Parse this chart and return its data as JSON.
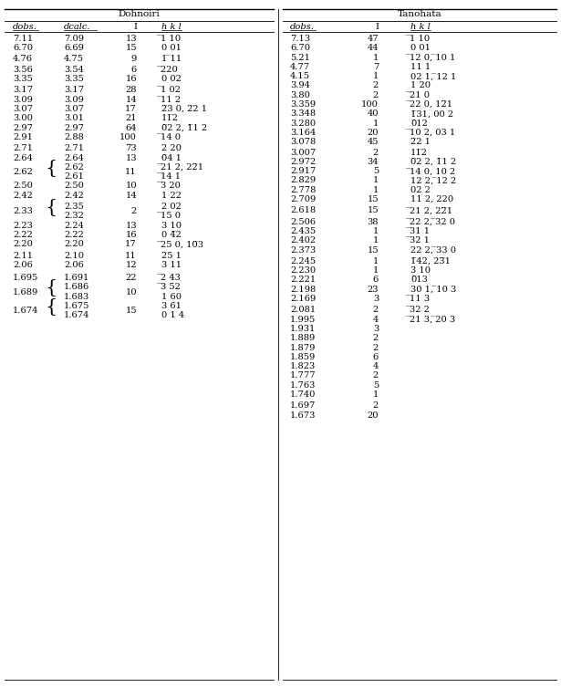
{
  "dohnoiri_header": "Dohnoiri",
  "tanohata_header": "Tanohata",
  "dohnoiri_extra_before": [
    0,
    0,
    1,
    2,
    0,
    2,
    0,
    0,
    0,
    0,
    0,
    2,
    0,
    0,
    0,
    0,
    2,
    0,
    0,
    0,
    2,
    0,
    4,
    0,
    0
  ],
  "dohnoiri_rows": [
    {
      "dobs": "7.11",
      "dcalc": [
        "7.09"
      ],
      "I": "13",
      "hkl": [
        "̅1 10"
      ],
      "grouped": false
    },
    {
      "dobs": "6.70",
      "dcalc": [
        "6.69"
      ],
      "I": "15",
      "hkl": [
        "0 01"
      ],
      "grouped": false
    },
    {
      "dobs": "4.76",
      "dcalc": [
        "4.75"
      ],
      "I": "9",
      "hkl": [
        "1 ̅11"
      ],
      "grouped": false
    },
    {
      "dobs": "3.56",
      "dcalc": [
        "3.54"
      ],
      "I": "6",
      "hkl": [
        "̅220"
      ],
      "grouped": false
    },
    {
      "dobs": "3.35",
      "dcalc": [
        "3.35"
      ],
      "I": "16",
      "hkl": [
        "0 02"
      ],
      "grouped": false
    },
    {
      "dobs": "3.17",
      "dcalc": [
        "3.17"
      ],
      "I": "28",
      "hkl": [
        "̅1 02"
      ],
      "grouped": false
    },
    {
      "dobs": "3.09",
      "dcalc": [
        "3.09"
      ],
      "I": "14",
      "hkl": [
        "̅11 2"
      ],
      "grouped": false
    },
    {
      "dobs": "3.07",
      "dcalc": [
        "3.07"
      ],
      "I": "17",
      "hkl": [
        "2̅3 0, 2̅2 1"
      ],
      "grouped": false
    },
    {
      "dobs": "3.00",
      "dcalc": [
        "3.01"
      ],
      "I": "21",
      "hkl": [
        "11̅2"
      ],
      "grouped": false
    },
    {
      "dobs": "2.97",
      "dcalc": [
        "2.97"
      ],
      "I": "64",
      "hkl": [
        "0̅2 2, 1̅1 2"
      ],
      "grouped": false
    },
    {
      "dobs": "2.91",
      "dcalc": [
        "2.88"
      ],
      "I": "100",
      "hkl": [
        "̅14 0"
      ],
      "grouped": false
    },
    {
      "dobs": "2.71",
      "dcalc": [
        "2.71"
      ],
      "I": "73",
      "hkl": [
        "2 20"
      ],
      "grouped": false
    },
    {
      "dobs": "2.64",
      "dcalc": [
        "2.64"
      ],
      "I": "13",
      "hkl": [
        "0̅4 1"
      ],
      "grouped": false
    },
    {
      "dobs": "2.62",
      "dcalc": [
        "2.62",
        "2.61"
      ],
      "I": "11",
      "hkl": [
        "̅21 2, 22̅1",
        "̅14 1"
      ],
      "grouped": true
    },
    {
      "dobs": "2.50",
      "dcalc": [
        "2.50"
      ],
      "I": "10",
      "hkl": [
        "̅3 20"
      ],
      "grouped": false
    },
    {
      "dobs": "2.42",
      "dcalc": [
        "2.42"
      ],
      "I": "14",
      "hkl": [
        "1 22"
      ],
      "grouped": false
    },
    {
      "dobs": "2.33",
      "dcalc": [
        "2.35",
        "2.32"
      ],
      "I": "2",
      "hkl": [
        "2 02",
        "̅15 0"
      ],
      "grouped": true
    },
    {
      "dobs": "2.23",
      "dcalc": [
        "2.24"
      ],
      "I": "13",
      "hkl": [
        "3 10"
      ],
      "grouped": false
    },
    {
      "dobs": "2.22",
      "dcalc": [
        "2.22"
      ],
      "I": "16",
      "hkl": [
        "0 4̅2"
      ],
      "grouped": false
    },
    {
      "dobs": "2.20",
      "dcalc": [
        "2.20"
      ],
      "I": "17",
      "hkl": [
        "̅25 0, 10̅3"
      ],
      "grouped": false
    },
    {
      "dobs": "2.11",
      "dcalc": [
        "2.10"
      ],
      "I": "11",
      "hkl": [
        "2̅5 1"
      ],
      "grouped": false
    },
    {
      "dobs": "2.06",
      "dcalc": [
        "2.06"
      ],
      "I": "12",
      "hkl": [
        "3 11"
      ],
      "grouped": false
    },
    {
      "dobs": "1.695",
      "dcalc": [
        "1.691"
      ],
      "I": "22",
      "hkl": [
        "̅2 43"
      ],
      "grouped": false
    },
    {
      "dobs": "1.689",
      "dcalc": [
        "1.686",
        "1.683"
      ],
      "I": "10",
      "hkl": [
        "̅3 52",
        "1 60"
      ],
      "grouped": true
    },
    {
      "dobs": "1.674",
      "dcalc": [
        "1.675",
        "1.674"
      ],
      "I": "15",
      "hkl": [
        "3 6̅1",
        "0 1 4"
      ],
      "grouped": true
    }
  ],
  "tanohata_extra_before": [
    0,
    0,
    0,
    0,
    0,
    0,
    0,
    0,
    0,
    0,
    0,
    0,
    1,
    0,
    0,
    0,
    0,
    0,
    2,
    2,
    0,
    0,
    0,
    2,
    0,
    0,
    0,
    0,
    2,
    0,
    0,
    0,
    0,
    0,
    0,
    0,
    0,
    0,
    2,
    0
  ],
  "tanohata_rows": [
    {
      "dobs": "7.13",
      "I": "47",
      "hkl": "̅1 10"
    },
    {
      "dobs": "6.70",
      "I": "44",
      "hkl": "0 01"
    },
    {
      "dobs": "5.21",
      "I": "1",
      "hkl": "̅12 0, ̅10 1"
    },
    {
      "dobs": "4.77",
      "I": "7",
      "hkl": "11 1"
    },
    {
      "dobs": "4.15",
      "I": "1",
      "hkl": "02 1, ̅12 1"
    },
    {
      "dobs": "3.94",
      "I": "2",
      "hkl": "1 20"
    },
    {
      "dobs": "3.80",
      "I": "2",
      "hkl": "̅21 0"
    },
    {
      "dobs": "3.359",
      "I": "100",
      "hkl": "̅22 0, 12̅1"
    },
    {
      "dobs": "3.348",
      "I": "40",
      "hkl": "1̅31, 00 2"
    },
    {
      "dobs": "3.280",
      "I": "1",
      "hkl": "0̅12"
    },
    {
      "dobs": "3.164",
      "I": "20",
      "hkl": "̅10 2, 03 1"
    },
    {
      "dobs": "3.078",
      "I": "45",
      "hkl": "2̅2 1"
    },
    {
      "dobs": "3.007",
      "I": "2",
      "hkl": "11̅2"
    },
    {
      "dobs": "2.972",
      "I": "34",
      "hkl": "0̅2 2, 1̅1 2"
    },
    {
      "dobs": "2.917",
      "I": "5",
      "hkl": "̅14 0, 10 2"
    },
    {
      "dobs": "2.829",
      "I": "1",
      "hkl": "12 2, ̅12 2"
    },
    {
      "dobs": "2.778",
      "I": "1",
      "hkl": "02 2"
    },
    {
      "dobs": "2.709",
      "I": "15",
      "hkl": "11 2, 220"
    },
    {
      "dobs": "2.618",
      "I": "15",
      "hkl": "̅21 2, 22̅1"
    },
    {
      "dobs": "2.506",
      "I": "38",
      "hkl": "̅22 2, ̅32 0"
    },
    {
      "dobs": "2.435",
      "I": "1",
      "hkl": "̅31 1"
    },
    {
      "dobs": "2.402",
      "I": "1",
      "hkl": "̅32 1"
    },
    {
      "dobs": "2.373",
      "I": "15",
      "hkl": "22 2, ̅33 0"
    },
    {
      "dobs": "2.245",
      "I": "1",
      "hkl": "1̅42, 23̅1"
    },
    {
      "dobs": "2.230",
      "I": "1",
      "hkl": "3 10"
    },
    {
      "dobs": "2.221",
      "I": "6",
      "hkl": "0̅13"
    },
    {
      "dobs": "2.198",
      "I": "23",
      "hkl": "30 1, ̅10 3"
    },
    {
      "dobs": "2.169",
      "I": "3",
      "hkl": "̅11 3"
    },
    {
      "dobs": "2.081",
      "I": "2",
      "hkl": "̅32 2"
    },
    {
      "dobs": "1.995",
      "I": "4",
      "hkl": "̅21 3, ̅20 3"
    },
    {
      "dobs": "1.931",
      "I": "3",
      "hkl": ""
    },
    {
      "dobs": "1.889",
      "I": "2",
      "hkl": ""
    },
    {
      "dobs": "1.879",
      "I": "2",
      "hkl": ""
    },
    {
      "dobs": "1.859",
      "I": "6",
      "hkl": ""
    },
    {
      "dobs": "1.823",
      "I": "4",
      "hkl": ""
    },
    {
      "dobs": "1.777",
      "I": "2",
      "hkl": ""
    },
    {
      "dobs": "1.763",
      "I": "5",
      "hkl": ""
    },
    {
      "dobs": "1.740",
      "I": "1",
      "hkl": ""
    },
    {
      "dobs": "1.697",
      "I": "2",
      "hkl": ""
    },
    {
      "dobs": "1.673",
      "I": "20",
      "hkl": ""
    }
  ]
}
